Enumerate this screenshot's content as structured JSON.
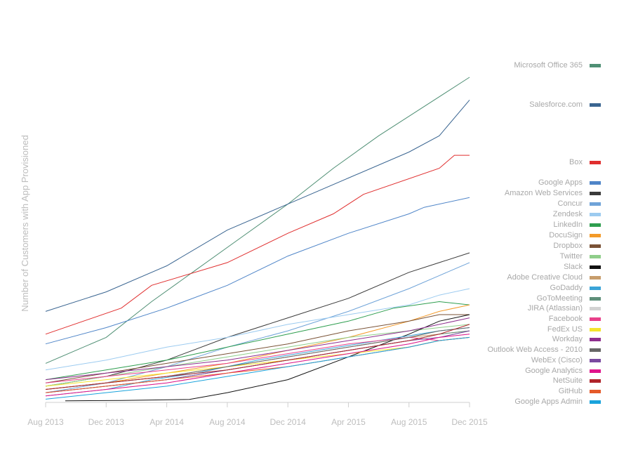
{
  "chart_data": {
    "type": "line",
    "title": "",
    "xlabel": "",
    "ylabel": "Number of Customers with App Provisioned",
    "x_ticks": [
      "Aug 2013",
      "Dec 2013",
      "Apr 2014",
      "Aug 2014",
      "Dec 2014",
      "Apr 2015",
      "Aug 2015",
      "Dec 2015"
    ],
    "ylim": [
      0,
      100
    ],
    "grid": false,
    "legend_position": "right",
    "series": [
      {
        "name": "Microsoft Office 365",
        "color": "#4f8f74",
        "points": [
          [
            0,
            12
          ],
          [
            4,
            20
          ],
          [
            7,
            31
          ],
          [
            10,
            41
          ],
          [
            13,
            51
          ],
          [
            16,
            61
          ],
          [
            19,
            72
          ],
          [
            22,
            82
          ],
          [
            24,
            88
          ],
          [
            28,
            100
          ]
        ]
      },
      {
        "name": "Salesforce.com",
        "color": "#3a6591",
        "points": [
          [
            0,
            28
          ],
          [
            4,
            34
          ],
          [
            8,
            42
          ],
          [
            12,
            53
          ],
          [
            16,
            61
          ],
          [
            20,
            69
          ],
          [
            24,
            77
          ],
          [
            26,
            82
          ],
          [
            28,
            93
          ]
        ]
      },
      {
        "name": "Box",
        "color": "#e02f2f",
        "points": [
          [
            0,
            21
          ],
          [
            5,
            29
          ],
          [
            7,
            36
          ],
          [
            12,
            43
          ],
          [
            16,
            52
          ],
          [
            19,
            58
          ],
          [
            21,
            64
          ],
          [
            26,
            72
          ],
          [
            27,
            76
          ],
          [
            28,
            76
          ]
        ]
      },
      {
        "name": "Google Apps",
        "color": "#4f85c8",
        "points": [
          [
            0,
            18
          ],
          [
            4,
            23
          ],
          [
            8,
            29
          ],
          [
            12,
            36
          ],
          [
            16,
            45
          ],
          [
            20,
            52
          ],
          [
            24,
            58
          ],
          [
            25,
            60
          ],
          [
            28,
            63
          ]
        ]
      },
      {
        "name": "Amazon Web Services",
        "color": "#3a3a3a",
        "points": [
          [
            0,
            5
          ],
          [
            4,
            8
          ],
          [
            8,
            13
          ],
          [
            12,
            20
          ],
          [
            16,
            26
          ],
          [
            20,
            32
          ],
          [
            24,
            40
          ],
          [
            26,
            43
          ],
          [
            28,
            46
          ]
        ]
      },
      {
        "name": "Concur",
        "color": "#6fa3d8",
        "points": [
          [
            0,
            3
          ],
          [
            4,
            6
          ],
          [
            8,
            11
          ],
          [
            12,
            17
          ],
          [
            16,
            22
          ],
          [
            20,
            28
          ],
          [
            24,
            35
          ],
          [
            26,
            39
          ],
          [
            28,
            43
          ]
        ]
      },
      {
        "name": "Zendesk",
        "color": "#9ccbf0",
        "points": [
          [
            0,
            10
          ],
          [
            4,
            13
          ],
          [
            8,
            17
          ],
          [
            12,
            20
          ],
          [
            16,
            24
          ],
          [
            20,
            27
          ],
          [
            24,
            30
          ],
          [
            26,
            33
          ],
          [
            28,
            35
          ]
        ]
      },
      {
        "name": "LinkedIn",
        "color": "#2e9e4f",
        "points": [
          [
            0,
            7
          ],
          [
            4,
            10
          ],
          [
            8,
            13
          ],
          [
            12,
            17
          ],
          [
            16,
            21
          ],
          [
            20,
            25
          ],
          [
            23,
            29
          ],
          [
            26,
            31
          ],
          [
            28,
            30
          ]
        ]
      },
      {
        "name": "DocuSign",
        "color": "#f39a29",
        "points": [
          [
            0,
            4
          ],
          [
            4,
            6
          ],
          [
            8,
            9
          ],
          [
            12,
            12
          ],
          [
            16,
            16
          ],
          [
            20,
            20
          ],
          [
            24,
            25
          ],
          [
            26,
            28
          ],
          [
            28,
            30
          ]
        ]
      },
      {
        "name": "Dropbox",
        "color": "#7a5236",
        "points": [
          [
            0,
            6
          ],
          [
            4,
            9
          ],
          [
            8,
            12
          ],
          [
            12,
            15
          ],
          [
            16,
            18
          ],
          [
            20,
            22
          ],
          [
            24,
            25
          ],
          [
            26,
            27
          ],
          [
            28,
            27
          ]
        ]
      },
      {
        "name": "Twitter",
        "color": "#8fce8a",
        "points": [
          [
            0,
            5
          ],
          [
            4,
            8
          ],
          [
            8,
            11
          ],
          [
            12,
            14
          ],
          [
            16,
            17
          ],
          [
            20,
            20
          ],
          [
            24,
            22
          ],
          [
            26,
            23
          ],
          [
            28,
            24
          ]
        ]
      },
      {
        "name": "Slack",
        "color": "#111111",
        "points": [
          [
            1.3,
            0.5
          ],
          [
            5,
            0.6
          ],
          [
            9.5,
            0.9
          ],
          [
            12,
            3
          ],
          [
            16,
            7
          ],
          [
            20,
            14
          ],
          [
            24,
            21
          ],
          [
            26,
            25
          ],
          [
            28,
            27
          ]
        ]
      },
      {
        "name": "Adobe Creative Cloud",
        "color": "#c79d6c",
        "points": [
          [
            0,
            4
          ],
          [
            4,
            6
          ],
          [
            8,
            8
          ],
          [
            12,
            11
          ],
          [
            16,
            14
          ],
          [
            20,
            17
          ],
          [
            24,
            20
          ],
          [
            26,
            21
          ],
          [
            28,
            22
          ]
        ]
      },
      {
        "name": "GoDaddy",
        "color": "#3aa4d8",
        "points": [
          [
            0,
            2
          ],
          [
            4,
            4
          ],
          [
            7,
            7
          ],
          [
            10,
            9
          ],
          [
            14,
            13
          ],
          [
            18,
            16
          ],
          [
            22,
            19
          ],
          [
            26,
            22
          ],
          [
            28,
            23
          ]
        ]
      },
      {
        "name": "GoToMeeting",
        "color": "#5f8f7a",
        "points": [
          [
            0,
            3
          ],
          [
            4,
            5
          ],
          [
            8,
            7
          ],
          [
            12,
            10
          ],
          [
            16,
            13
          ],
          [
            20,
            16
          ],
          [
            24,
            19
          ],
          [
            26,
            21
          ],
          [
            28,
            22
          ]
        ]
      },
      {
        "name": "JIRA (Atlassian)",
        "color": "#d2d2d2",
        "points": [
          [
            0,
            2
          ],
          [
            4,
            4
          ],
          [
            8,
            6
          ],
          [
            12,
            9
          ],
          [
            16,
            12
          ],
          [
            20,
            15
          ],
          [
            24,
            18
          ],
          [
            26,
            20
          ],
          [
            28,
            21
          ]
        ]
      },
      {
        "name": "Facebook",
        "color": "#e8408a",
        "points": [
          [
            0,
            6
          ],
          [
            4,
            8
          ],
          [
            8,
            10
          ],
          [
            12,
            12
          ],
          [
            16,
            15
          ],
          [
            20,
            18
          ],
          [
            24,
            20
          ],
          [
            26,
            19
          ],
          [
            28,
            20
          ]
        ]
      },
      {
        "name": "FedEx US",
        "color": "#f4e42c",
        "points": [
          [
            0,
            5
          ],
          [
            4,
            7
          ],
          [
            8,
            9
          ],
          [
            12,
            11
          ],
          [
            16,
            13
          ],
          [
            20,
            15
          ],
          [
            24,
            17
          ],
          [
            26,
            19
          ],
          [
            28,
            20
          ]
        ]
      },
      {
        "name": "Workday",
        "color": "#8e2f8e",
        "points": [
          [
            0,
            7
          ],
          [
            4,
            9
          ],
          [
            8,
            11
          ],
          [
            12,
            13
          ],
          [
            16,
            16
          ],
          [
            20,
            19
          ],
          [
            24,
            22
          ],
          [
            26,
            24
          ],
          [
            28,
            26
          ]
        ]
      },
      {
        "name": "Outlook Web Access - 2010",
        "color": "#666666",
        "points": [
          [
            0,
            4
          ],
          [
            4,
            6
          ],
          [
            8,
            8
          ],
          [
            12,
            11
          ],
          [
            16,
            14
          ],
          [
            20,
            17
          ],
          [
            24,
            20
          ],
          [
            26,
            22
          ],
          [
            28,
            23
          ]
        ]
      },
      {
        "name": "WebEx (Cisco)",
        "color": "#7a4aa0",
        "points": [
          [
            0,
            3
          ],
          [
            4,
            5
          ],
          [
            8,
            7
          ],
          [
            12,
            10
          ],
          [
            16,
            13
          ],
          [
            20,
            16
          ],
          [
            24,
            19
          ],
          [
            26,
            20
          ],
          [
            28,
            22
          ]
        ]
      },
      {
        "name": "Google Analytics",
        "color": "#e0148c",
        "points": [
          [
            0,
            2
          ],
          [
            4,
            4
          ],
          [
            8,
            6
          ],
          [
            12,
            9
          ],
          [
            16,
            12
          ],
          [
            20,
            15
          ],
          [
            24,
            18
          ],
          [
            26,
            20
          ],
          [
            28,
            21
          ]
        ]
      },
      {
        "name": "NetSuite",
        "color": "#b0232a",
        "points": [
          [
            0,
            4
          ],
          [
            4,
            6
          ],
          [
            8,
            8
          ],
          [
            12,
            10
          ],
          [
            16,
            13
          ],
          [
            20,
            16
          ],
          [
            24,
            19
          ],
          [
            26,
            21
          ],
          [
            28,
            24
          ]
        ]
      },
      {
        "name": "GitHub",
        "color": "#e55a2a",
        "points": [
          [
            0,
            3
          ],
          [
            4,
            5
          ],
          [
            8,
            7
          ],
          [
            12,
            9
          ],
          [
            16,
            11
          ],
          [
            20,
            14
          ],
          [
            24,
            17
          ],
          [
            26,
            19
          ],
          [
            28,
            20
          ]
        ]
      },
      {
        "name": "Google Apps Admin",
        "color": "#1aa3dc",
        "points": [
          [
            0,
            1
          ],
          [
            4,
            3
          ],
          [
            8,
            5
          ],
          [
            12,
            8
          ],
          [
            16,
            11
          ],
          [
            20,
            14
          ],
          [
            24,
            17
          ],
          [
            26,
            19
          ],
          [
            28,
            20
          ]
        ]
      }
    ]
  }
}
